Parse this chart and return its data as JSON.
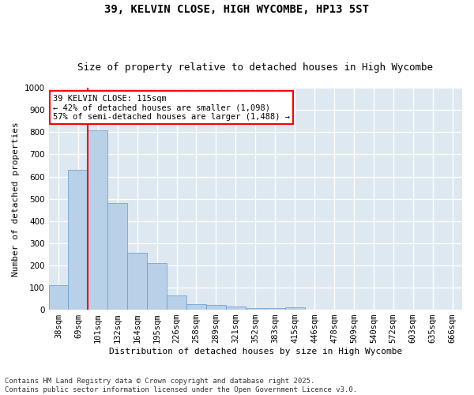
{
  "title": "39, KELVIN CLOSE, HIGH WYCOMBE, HP13 5ST",
  "subtitle": "Size of property relative to detached houses in High Wycombe",
  "xlabel": "Distribution of detached houses by size in High Wycombe",
  "ylabel": "Number of detached properties",
  "categories": [
    "38sqm",
    "69sqm",
    "101sqm",
    "132sqm",
    "164sqm",
    "195sqm",
    "226sqm",
    "258sqm",
    "289sqm",
    "321sqm",
    "352sqm",
    "383sqm",
    "415sqm",
    "446sqm",
    "478sqm",
    "509sqm",
    "540sqm",
    "572sqm",
    "603sqm",
    "635sqm",
    "666sqm"
  ],
  "values": [
    110,
    632,
    810,
    482,
    258,
    212,
    65,
    27,
    20,
    13,
    8,
    6,
    10,
    0,
    0,
    0,
    0,
    0,
    0,
    0,
    0
  ],
  "bar_color": "#b8d0e8",
  "bar_edge_color": "#6699cc",
  "vline_color": "red",
  "annotation_text": "39 KELVIN CLOSE: 115sqm\n← 42% of detached houses are smaller (1,098)\n57% of semi-detached houses are larger (1,488) →",
  "annotation_box_color": "red",
  "ylim": [
    0,
    1000
  ],
  "yticks": [
    0,
    100,
    200,
    300,
    400,
    500,
    600,
    700,
    800,
    900,
    1000
  ],
  "bg_color": "#dde8f0",
  "grid_color": "white",
  "footer": "Contains HM Land Registry data © Crown copyright and database right 2025.\nContains public sector information licensed under the Open Government Licence v3.0.",
  "title_fontsize": 10,
  "subtitle_fontsize": 9,
  "axis_label_fontsize": 8,
  "tick_fontsize": 7.5,
  "annotation_fontsize": 7.5,
  "footer_fontsize": 6.5
}
